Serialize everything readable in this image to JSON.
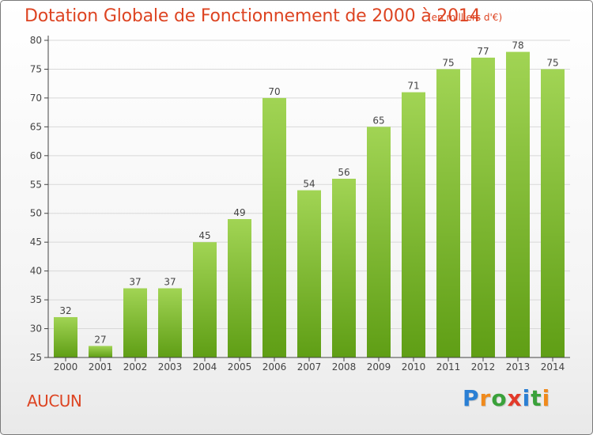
{
  "title": "Dotation Globale de Fonctionnement de 2000 à 2014",
  "subtitle": "(en milliers d'€)",
  "commune": "AUCUN",
  "logo": {
    "text": "Proxiti",
    "letters": [
      {
        "ch": "P",
        "color": "#2a7fd4"
      },
      {
        "ch": "r",
        "color": "#f08a1c"
      },
      {
        "ch": "o",
        "color": "#3aa13a"
      },
      {
        "ch": "x",
        "color": "#e23a2a"
      },
      {
        "ch": "i",
        "color": "#2a7fd4"
      },
      {
        "ch": "t",
        "color": "#3aa13a"
      },
      {
        "ch": "i",
        "color": "#f08a1c"
      }
    ]
  },
  "colors": {
    "title": "#dd4422",
    "bar_top": "#a1d454",
    "bar_bottom": "#5f9e15",
    "grid": "#d8d8d8",
    "axis": "#444444"
  },
  "chart_data": {
    "type": "bar",
    "categories": [
      "2000",
      "2001",
      "2002",
      "2003",
      "2004",
      "2005",
      "2006",
      "2007",
      "2008",
      "2009",
      "2010",
      "2011",
      "2012",
      "2013",
      "2014"
    ],
    "values": [
      32,
      27,
      37,
      37,
      45,
      49,
      70,
      54,
      56,
      65,
      71,
      75,
      77,
      78,
      75
    ],
    "ylim": [
      25,
      80
    ],
    "yticks": [
      25,
      30,
      35,
      40,
      45,
      50,
      55,
      60,
      65,
      70,
      75,
      80
    ],
    "grid": true,
    "data_labels": true
  }
}
